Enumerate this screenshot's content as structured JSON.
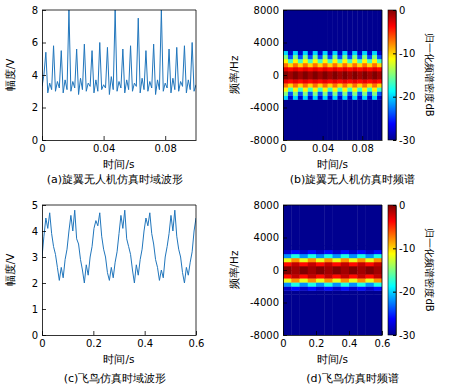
{
  "chart_data": [
    {
      "type": "line",
      "title": "(a)旋翼无人机仿真时域波形",
      "xlabel": "时间/s",
      "ylabel": "幅度/V",
      "color": "#2176bc",
      "xlim": [
        0,
        0.1
      ],
      "xticks": [
        0,
        0.04,
        0.08
      ],
      "ylim": [
        0,
        8
      ],
      "yticks": [
        0,
        2,
        4,
        6,
        8
      ],
      "x": [
        0,
        0.00125,
        0.0025,
        0.00375,
        0.005,
        0.00625,
        0.0075,
        0.00875,
        0.01,
        0.01125,
        0.0125,
        0.01375,
        0.015,
        0.01625,
        0.0175,
        0.01875,
        0.02,
        0.02125,
        0.0225,
        0.02375,
        0.025,
        0.02625,
        0.0275,
        0.02875,
        0.03,
        0.03125,
        0.0325,
        0.03375,
        0.035,
        0.03625,
        0.0375,
        0.03875,
        0.04,
        0.04125,
        0.0425,
        0.04375,
        0.045,
        0.04625,
        0.0475,
        0.04875,
        0.05,
        0.05125,
        0.0525,
        0.05375,
        0.055,
        0.05625,
        0.0575,
        0.05875,
        0.06,
        0.06125,
        0.0625,
        0.06375,
        0.065,
        0.06625,
        0.0675,
        0.06875,
        0.07,
        0.07125,
        0.0725,
        0.07375,
        0.075,
        0.07625,
        0.0775,
        0.07875,
        0.08,
        0.08125,
        0.0825,
        0.08375,
        0.085,
        0.08625,
        0.0875,
        0.08875,
        0.09,
        0.09125,
        0.0925,
        0.09375,
        0.095,
        0.09625,
        0.0975,
        0.09875,
        0.1
      ],
      "values": [
        3.3,
        4.0,
        5.4,
        2.9,
        3.5,
        3.1,
        5.8,
        3.0,
        3.6,
        3.2,
        5.5,
        2.9,
        3.7,
        3.1,
        8.0,
        3.0,
        3.6,
        3.2,
        5.6,
        2.8,
        3.8,
        3.1,
        5.9,
        3.0,
        3.5,
        3.3,
        5.5,
        2.9,
        3.7,
        3.0,
        6.0,
        3.1,
        3.4,
        3.2,
        5.7,
        2.8,
        3.9,
        3.1,
        8.0,
        3.0,
        3.6,
        3.2,
        5.6,
        2.9,
        3.7,
        3.1,
        5.8,
        3.0,
        3.5,
        3.3,
        7.5,
        2.9,
        3.8,
        3.1,
        5.5,
        3.0,
        3.6,
        3.2,
        5.9,
        2.8,
        3.7,
        3.1,
        8.0,
        3.0,
        3.5,
        3.2,
        5.6,
        2.9,
        3.8,
        3.1,
        5.7,
        3.0,
        3.6,
        3.3,
        5.8,
        2.9,
        3.7,
        3.1,
        6.0,
        3.0,
        3.4
      ]
    },
    {
      "type": "heatmap",
      "title": "(b)旋翼无人机仿真时频谱",
      "xlabel": "时间/s",
      "ylabel": "频率/Hz",
      "xlim": [
        0,
        0.1
      ],
      "xticks": [
        0,
        0.04,
        0.08
      ],
      "ylim": [
        -8000,
        8000
      ],
      "yticks": [
        -8000,
        -4000,
        0,
        4000,
        8000
      ],
      "x_edges": [
        0,
        0.005,
        0.01,
        0.015,
        0.02,
        0.025,
        0.03,
        0.035,
        0.04,
        0.045,
        0.05,
        0.055,
        0.06,
        0.065,
        0.07,
        0.075,
        0.08,
        0.085,
        0.09,
        0.095,
        0.1
      ],
      "y_edges": [
        -8000,
        -3000,
        -2500,
        -2000,
        -1500,
        -1000,
        -500,
        0,
        500,
        1000,
        1500,
        2000,
        2500,
        3000,
        8000
      ],
      "cells": [
        [
          -30,
          -30,
          -30,
          -30,
          -30,
          -30,
          -30,
          -30,
          -30,
          -30,
          -30,
          -30,
          -30,
          -30,
          -30,
          -30,
          -30,
          -30,
          -30,
          -30
        ],
        [
          -20,
          -28,
          -20,
          -28,
          -20,
          -28,
          -20,
          -28,
          -20,
          -28,
          -20,
          -28,
          -20,
          -28,
          -20,
          -28,
          -20,
          -28,
          -20,
          -28
        ],
        [
          -15,
          -24,
          -15,
          -24,
          -15,
          -24,
          -15,
          -24,
          -15,
          -24,
          -15,
          -24,
          -15,
          -24,
          -15,
          -24,
          -15,
          -24,
          -15,
          -24
        ],
        [
          -11,
          -17,
          -11,
          -17,
          -11,
          -17,
          -11,
          -17,
          -11,
          -17,
          -11,
          -17,
          -11,
          -17,
          -11,
          -17,
          -11,
          -17,
          -11,
          -17
        ],
        [
          -7,
          -10,
          -7,
          -10,
          -7,
          -10,
          -7,
          -10,
          -7,
          -10,
          -7,
          -10,
          -7,
          -10,
          -7,
          -10,
          -7,
          -10,
          -7,
          -10
        ],
        [
          -3,
          -4,
          -3,
          -4,
          -3,
          -4,
          -3,
          -4,
          -3,
          -4,
          -3,
          -4,
          -3,
          -4,
          -3,
          -4,
          -3,
          -4,
          -3,
          -4
        ],
        [
          0,
          -1,
          0,
          -1,
          0,
          -1,
          0,
          -1,
          0,
          -1,
          0,
          -1,
          0,
          -1,
          0,
          -1,
          0,
          -1,
          0,
          -1
        ],
        [
          0,
          -1,
          0,
          -1,
          0,
          -1,
          0,
          -1,
          0,
          -1,
          0,
          -1,
          0,
          -1,
          0,
          -1,
          0,
          -1,
          0,
          -1
        ],
        [
          -3,
          -4,
          -3,
          -4,
          -3,
          -4,
          -3,
          -4,
          -3,
          -4,
          -3,
          -4,
          -3,
          -4,
          -3,
          -4,
          -3,
          -4,
          -3,
          -4
        ],
        [
          -7,
          -10,
          -7,
          -10,
          -7,
          -10,
          -7,
          -10,
          -7,
          -10,
          -7,
          -10,
          -7,
          -10,
          -7,
          -10,
          -7,
          -10,
          -7,
          -10
        ],
        [
          -11,
          -17,
          -11,
          -17,
          -11,
          -17,
          -11,
          -17,
          -11,
          -17,
          -11,
          -17,
          -11,
          -17,
          -11,
          -17,
          -11,
          -17,
          -11,
          -17
        ],
        [
          -15,
          -24,
          -15,
          -24,
          -15,
          -24,
          -15,
          -24,
          -15,
          -24,
          -15,
          -24,
          -15,
          -24,
          -15,
          -24,
          -15,
          -24,
          -15,
          -24
        ],
        [
          -20,
          -28,
          -20,
          -28,
          -20,
          -28,
          -20,
          -28,
          -20,
          -28,
          -20,
          -28,
          -20,
          -28,
          -20,
          -28,
          -20,
          -28,
          -20,
          -28
        ],
        [
          -30,
          -30,
          -30,
          -30,
          -30,
          -30,
          -30,
          -30,
          -30,
          -30,
          -30,
          -30,
          -30,
          -30,
          -30,
          -30,
          -30,
          -30,
          -30,
          -30
        ]
      ],
      "colorbar": {
        "range": [
          -30,
          0
        ],
        "ticks": [
          0,
          -10,
          -20,
          -30
        ],
        "label": "归一化频谱密度dB"
      }
    },
    {
      "type": "line",
      "title": "(c)飞鸟仿真时域波形",
      "xlabel": "时间/s",
      "ylabel": "幅度/V",
      "color": "#2176bc",
      "xlim": [
        0,
        0.6
      ],
      "xticks": [
        0,
        0.2,
        0.4,
        0.6
      ],
      "ylim": [
        0,
        5
      ],
      "yticks": [
        0,
        1,
        2,
        3,
        4,
        5
      ],
      "x": [
        0,
        0.0075,
        0.015,
        0.0225,
        0.03,
        0.0375,
        0.045,
        0.0525,
        0.06,
        0.0675,
        0.075,
        0.0825,
        0.09,
        0.0975,
        0.105,
        0.1125,
        0.12,
        0.1275,
        0.135,
        0.1425,
        0.15,
        0.1575,
        0.165,
        0.1725,
        0.18,
        0.1875,
        0.195,
        0.2025,
        0.21,
        0.2175,
        0.225,
        0.2325,
        0.24,
        0.2475,
        0.255,
        0.2625,
        0.27,
        0.2775,
        0.285,
        0.2925,
        0.3,
        0.3075,
        0.315,
        0.3225,
        0.33,
        0.3375,
        0.345,
        0.3525,
        0.36,
        0.3675,
        0.375,
        0.3825,
        0.39,
        0.3975,
        0.405,
        0.4125,
        0.42,
        0.4275,
        0.435,
        0.4425,
        0.45,
        0.4575,
        0.465,
        0.4725,
        0.48,
        0.4875,
        0.495,
        0.5025,
        0.51,
        0.5175,
        0.525,
        0.5325,
        0.54,
        0.5475,
        0.555,
        0.5625,
        0.57,
        0.5775,
        0.585,
        0.5925,
        0.6
      ],
      "values": [
        3.0,
        3.8,
        4.5,
        4.1,
        4.7,
        3.9,
        3.4,
        3.1,
        2.6,
        2.1,
        2.6,
        2.2,
        2.9,
        3.3,
        4.0,
        4.6,
        4.0,
        4.8,
        3.7,
        3.5,
        2.9,
        2.5,
        2.0,
        2.7,
        2.3,
        3.0,
        3.4,
        4.1,
        4.4,
        4.2,
        4.7,
        3.8,
        3.3,
        3.0,
        2.4,
        2.1,
        2.6,
        2.2,
        2.8,
        3.2,
        3.9,
        4.6,
        4.1,
        4.8,
        3.7,
        3.4,
        3.1,
        2.5,
        2.0,
        2.7,
        2.3,
        2.9,
        3.3,
        4.0,
        4.5,
        4.2,
        4.7,
        3.9,
        3.5,
        2.9,
        2.6,
        2.1,
        2.5,
        2.2,
        3.0,
        3.4,
        3.9,
        4.6,
        4.0,
        4.8,
        3.8,
        3.3,
        3.0,
        2.4,
        2.0,
        2.6,
        2.3,
        2.8,
        3.2,
        4.0,
        4.5
      ]
    },
    {
      "type": "heatmap",
      "title": "(d)飞鸟仿真时频谱",
      "xlabel": "时间/s",
      "ylabel": "频率/Hz",
      "xlim": [
        0,
        0.6
      ],
      "xticks": [
        0,
        0.2,
        0.4,
        0.6
      ],
      "ylim": [
        -8000,
        8000
      ],
      "yticks": [
        -8000,
        -4000,
        0,
        4000,
        8000
      ],
      "x_edges": [
        0,
        0.05,
        0.1,
        0.15,
        0.2,
        0.25,
        0.3,
        0.35,
        0.4,
        0.45,
        0.5,
        0.55,
        0.6
      ],
      "y_edges": [
        -8000,
        -3000,
        -2500,
        -2000,
        -1500,
        -1000,
        -500,
        0,
        500,
        1000,
        1500,
        2000,
        2500,
        3000,
        8000
      ],
      "cells": [
        [
          -30,
          -30,
          -30,
          -30,
          -30,
          -30,
          -30,
          -30,
          -30,
          -30,
          -30,
          -30
        ],
        [
          -30,
          -30,
          -30,
          -30,
          -30,
          -30,
          -30,
          -30,
          -30,
          -30,
          -30,
          -30
        ],
        [
          -28,
          -26,
          -28,
          -26,
          -28,
          -26,
          -28,
          -26,
          -28,
          -26,
          -28,
          -26
        ],
        [
          -22,
          -18,
          -22,
          -18,
          -22,
          -18,
          -22,
          -18,
          -22,
          -18,
          -22,
          -18
        ],
        [
          -12,
          -8,
          -12,
          -8,
          -12,
          -8,
          -12,
          -8,
          -12,
          -8,
          -12,
          -8
        ],
        [
          -4,
          -2,
          -4,
          -2,
          -4,
          -2,
          -4,
          -2,
          -4,
          -2,
          -4,
          -2
        ],
        [
          0,
          -1,
          0,
          -1,
          0,
          -1,
          0,
          -1,
          0,
          -1,
          0,
          -1
        ],
        [
          0,
          -1,
          0,
          -1,
          0,
          -1,
          0,
          -1,
          0,
          -1,
          0,
          -1
        ],
        [
          -4,
          -2,
          -4,
          -2,
          -4,
          -2,
          -4,
          -2,
          -4,
          -2,
          -4,
          -2
        ],
        [
          -12,
          -8,
          -12,
          -8,
          -12,
          -8,
          -12,
          -8,
          -12,
          -8,
          -12,
          -8
        ],
        [
          -22,
          -18,
          -22,
          -18,
          -22,
          -18,
          -22,
          -18,
          -22,
          -18,
          -22,
          -18
        ],
        [
          -28,
          -26,
          -28,
          -26,
          -28,
          -26,
          -28,
          -26,
          -28,
          -26,
          -28,
          -26
        ],
        [
          -30,
          -30,
          -30,
          -30,
          -30,
          -30,
          -30,
          -30,
          -30,
          -30,
          -30,
          -30
        ],
        [
          -30,
          -30,
          -30,
          -30,
          -30,
          -30,
          -30,
          -30,
          -30,
          -30,
          -30,
          -30
        ]
      ],
      "colorbar": {
        "range": [
          -30,
          0
        ],
        "ticks": [
          0,
          -10,
          -20,
          -30
        ],
        "label": "归一化频谱密度dB"
      }
    }
  ]
}
